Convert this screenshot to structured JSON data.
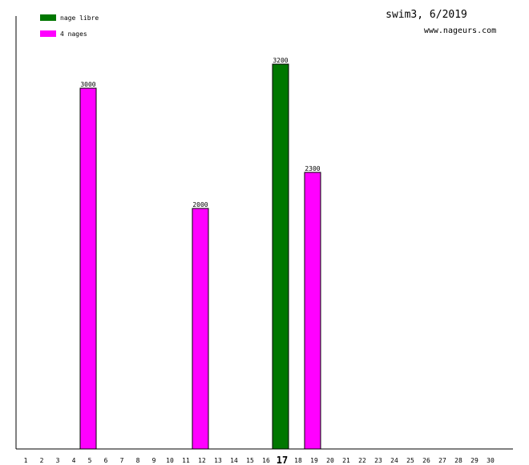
{
  "chart_data": {
    "type": "bar",
    "title": "swim3, 6/2019",
    "subtitle": "www.nageurs.com",
    "categories": [
      "1",
      "2",
      "3",
      "4",
      "5",
      "6",
      "7",
      "8",
      "9",
      "10",
      "11",
      "12",
      "13",
      "14",
      "15",
      "16",
      "17",
      "18",
      "19",
      "20",
      "21",
      "22",
      "23",
      "24",
      "25",
      "26",
      "27",
      "28",
      "29",
      "30"
    ],
    "highlight": 16,
    "ylim": [
      0,
      3600
    ],
    "series": [
      {
        "name": "nage libre",
        "color": "#007700",
        "values": [
          null,
          null,
          null,
          null,
          null,
          null,
          null,
          null,
          null,
          null,
          null,
          null,
          null,
          null,
          null,
          null,
          3200,
          null,
          null,
          null,
          null,
          null,
          null,
          null,
          null,
          null,
          null,
          null,
          null,
          null
        ]
      },
      {
        "name": "4 nages",
        "color": "#ff00ff",
        "values": [
          null,
          null,
          null,
          null,
          3000,
          null,
          null,
          null,
          null,
          null,
          null,
          2000,
          null,
          null,
          null,
          null,
          null,
          null,
          2300,
          null,
          null,
          null,
          null,
          null,
          null,
          null,
          null,
          null,
          null,
          null
        ]
      }
    ]
  }
}
